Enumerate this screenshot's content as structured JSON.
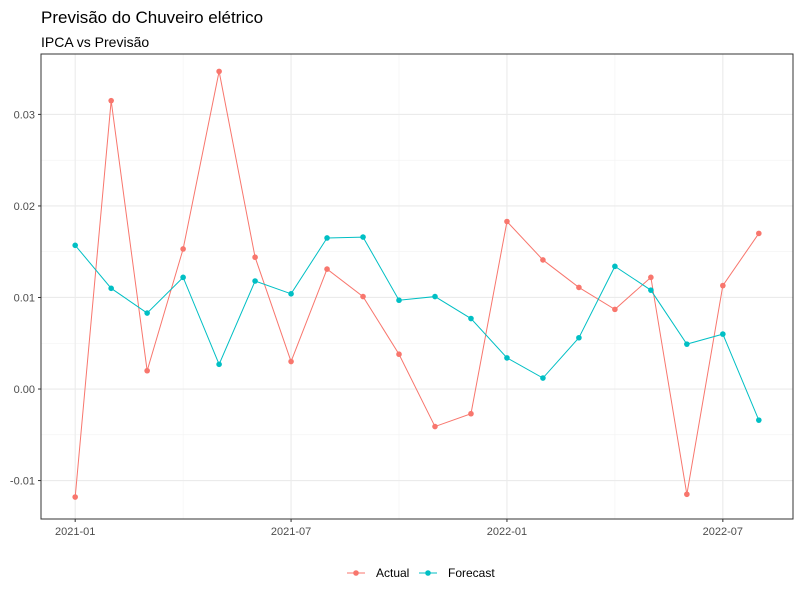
{
  "chart_data": {
    "type": "line",
    "title": "Previsão do Chuveiro elétrico",
    "subtitle": "IPCA vs Previsão",
    "xlabel": "",
    "ylabel": "",
    "x_dates": [
      "2021-01",
      "2021-02",
      "2021-03",
      "2021-04",
      "2021-05",
      "2021-06",
      "2021-07",
      "2021-08",
      "2021-09",
      "2021-10",
      "2021-11",
      "2021-12",
      "2022-01",
      "2022-02",
      "2022-03",
      "2022-04",
      "2022-05",
      "2022-06",
      "2022-07",
      "2022-08"
    ],
    "x_ticks": [
      "2021-01",
      "2021-07",
      "2022-01",
      "2022-07"
    ],
    "y_ticks": [
      -0.01,
      0.0,
      0.01,
      0.02,
      0.03
    ],
    "y_tick_labels": [
      "-0.01",
      "0.00",
      "0.01",
      "0.02",
      "0.03"
    ],
    "ylim": [
      -0.0142,
      0.0366
    ],
    "grid": true,
    "legend_position": "bottom",
    "series": [
      {
        "name": "Actual",
        "color": "#F8766D",
        "values": [
          -0.0118,
          0.0315,
          0.002,
          0.0153,
          0.0347,
          0.0144,
          0.003,
          0.0131,
          0.0101,
          0.0038,
          -0.0041,
          -0.0027,
          0.0183,
          0.0141,
          0.0111,
          0.0087,
          0.0122,
          -0.0115,
          0.0113,
          0.017
        ]
      },
      {
        "name": "Forecast",
        "color": "#00BFC4",
        "values": [
          0.0157,
          0.011,
          0.0083,
          0.0122,
          0.0027,
          0.0118,
          0.0104,
          0.0165,
          0.0166,
          0.0097,
          0.0101,
          0.0077,
          0.0034,
          0.0012,
          0.0056,
          0.0134,
          0.0108,
          0.0049,
          0.006,
          -0.0034
        ]
      }
    ]
  }
}
